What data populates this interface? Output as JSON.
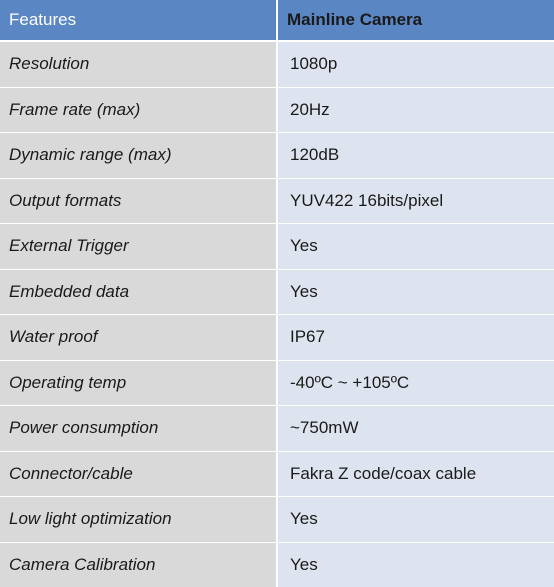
{
  "table": {
    "headers": [
      "Features",
      "Mainline Camera"
    ],
    "rows": [
      [
        "Resolution",
        "1080p"
      ],
      [
        "Frame rate (max)",
        "20Hz"
      ],
      [
        "Dynamic range (max)",
        "120dB"
      ],
      [
        "Output formats",
        "YUV422 16bits/pixel"
      ],
      [
        "External Trigger",
        "Yes"
      ],
      [
        "Embedded data",
        "Yes"
      ],
      [
        "Water proof",
        "IP67"
      ],
      [
        "Operating temp",
        "-40ºC ~ +105ºC"
      ],
      [
        "Power consumption",
        "~750mW"
      ],
      [
        "Connector/cable",
        "Fakra Z code/coax cable"
      ],
      [
        "Low light optimization",
        "Yes"
      ],
      [
        "Camera Calibration",
        "Yes"
      ]
    ]
  },
  "colors": {
    "header_background": "#5b86c4",
    "feature_cell_background": "#d9d9d9",
    "value_cell_background": "#dee4ef"
  }
}
